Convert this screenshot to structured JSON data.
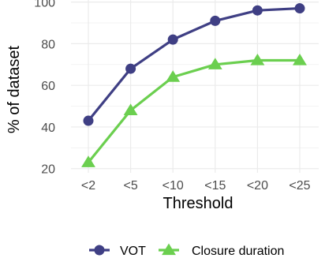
{
  "chart_data": {
    "type": "line",
    "title": "",
    "xlabel": "Threshold",
    "ylabel": "% of dataset",
    "categories": [
      "<2",
      "<5",
      "<10",
      "<15",
      "<20",
      "<25"
    ],
    "ylim": [
      18,
      101
    ],
    "yticks": [
      20,
      40,
      60,
      80,
      100
    ],
    "grid": true,
    "legend_position": "bottom",
    "series": [
      {
        "name": "VOT",
        "values": [
          43,
          68,
          82,
          91,
          96,
          97
        ],
        "color": "#3f3f84",
        "marker": "circle"
      },
      {
        "name": "Closure duration",
        "values": [
          23,
          48,
          64,
          70,
          72,
          72
        ],
        "color": "#6bcf4f",
        "marker": "triangle"
      }
    ]
  }
}
